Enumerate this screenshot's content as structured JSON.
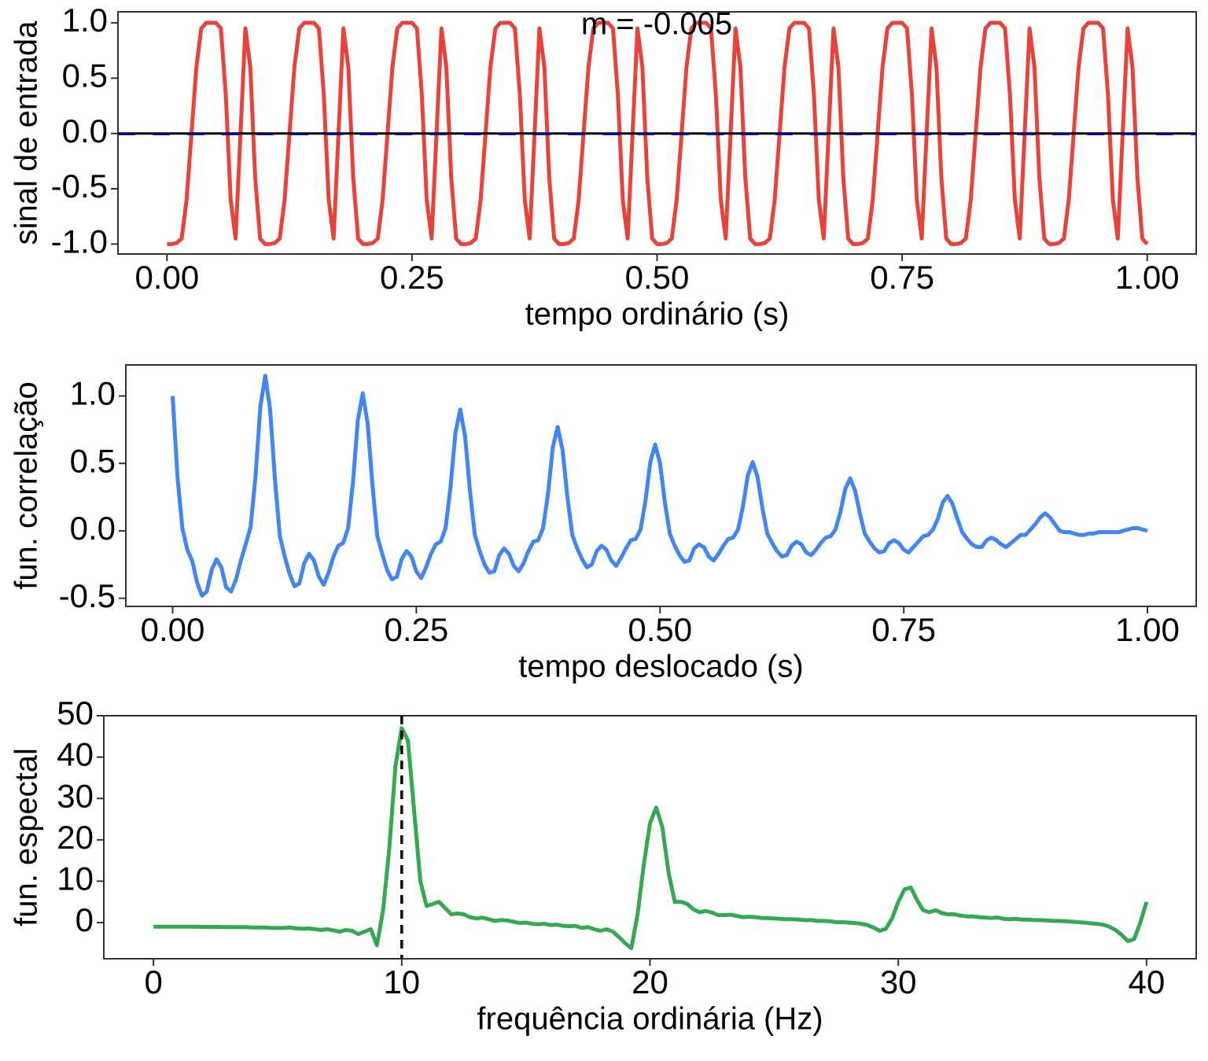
{
  "chart_data": [
    {
      "type": "line",
      "color": "#e8423a",
      "xlabel": "tempo ordinário (s)",
      "ylabel": "sinal de entrada",
      "annotation": "m = -0.005",
      "hline": 0,
      "mean": -0.005,
      "mean_color": "#00008b",
      "xlim": [
        -0.05,
        1.05
      ],
      "ylim": [
        -1.09,
        1.1
      ],
      "xticks": [
        {
          "value": 0,
          "label": "0.00"
        },
        {
          "value": 0.25,
          "label": "0.25"
        },
        {
          "value": 0.5,
          "label": "0.50"
        },
        {
          "value": 0.75,
          "label": "0.75"
        },
        {
          "value": 1,
          "label": "1.00"
        }
      ],
      "yticks": [
        {
          "value": -1,
          "label": "-1.0"
        },
        -0.5,
        {
          "value": 0,
          "label": "0.0"
        },
        0.5,
        {
          "value": 1,
          "label": "1.0"
        }
      ],
      "x": [
        0,
        0.005,
        0.01,
        0.015,
        0.02,
        0.025,
        0.03,
        0.035,
        0.04,
        0.045,
        0.05,
        0.055,
        0.06,
        0.065,
        0.07,
        0.075,
        0.08,
        0.085,
        0.09,
        0.095,
        0.1,
        0.105,
        0.11,
        0.115,
        0.12,
        0.125,
        0.13,
        0.135,
        0.14,
        0.145,
        0.15,
        0.155,
        0.16,
        0.165,
        0.17,
        0.175,
        0.18,
        0.185,
        0.19,
        0.195,
        0.2,
        0.205,
        0.21,
        0.215,
        0.22,
        0.225,
        0.23,
        0.235,
        0.24,
        0.245,
        0.25,
        0.255,
        0.26,
        0.265,
        0.27,
        0.275,
        0.28,
        0.285,
        0.29,
        0.295,
        0.3,
        0.305,
        0.31,
        0.315,
        0.32,
        0.325,
        0.33,
        0.335,
        0.34,
        0.345,
        0.35,
        0.355,
        0.36,
        0.365,
        0.37,
        0.375,
        0.38,
        0.385,
        0.39,
        0.395,
        0.4,
        0.405,
        0.41,
        0.415,
        0.42,
        0.425,
        0.43,
        0.435,
        0.44,
        0.445,
        0.45,
        0.455,
        0.46,
        0.465,
        0.47,
        0.475,
        0.48,
        0.485,
        0.49,
        0.495,
        0.5,
        0.505,
        0.51,
        0.515,
        0.52,
        0.525,
        0.53,
        0.535,
        0.54,
        0.545,
        0.55,
        0.555,
        0.56,
        0.565,
        0.57,
        0.575,
        0.58,
        0.585,
        0.59,
        0.595,
        0.6,
        0.605,
        0.61,
        0.615,
        0.62,
        0.625,
        0.63,
        0.635,
        0.64,
        0.645,
        0.65,
        0.655,
        0.66,
        0.665,
        0.67,
        0.675,
        0.68,
        0.685,
        0.69,
        0.695,
        0.7,
        0.705,
        0.71,
        0.715,
        0.72,
        0.725,
        0.73,
        0.735,
        0.74,
        0.745,
        0.75,
        0.755,
        0.76,
        0.765,
        0.77,
        0.775,
        0.78,
        0.785,
        0.79,
        0.795,
        0.8,
        0.805,
        0.81,
        0.815,
        0.82,
        0.825,
        0.83,
        0.835,
        0.84,
        0.845,
        0.85,
        0.855,
        0.86,
        0.865,
        0.87,
        0.875,
        0.88,
        0.885,
        0.89,
        0.895,
        0.9,
        0.905,
        0.91,
        0.915,
        0.92,
        0.925,
        0.93,
        0.935,
        0.94,
        0.945,
        0.95,
        0.955,
        0.96,
        0.965,
        0.97,
        0.975,
        0.98,
        0.985,
        0.99,
        0.995,
        1
      ],
      "values": [
        -1,
        -1,
        -0.99,
        -0.95,
        -0.6,
        0,
        0.6,
        0.95,
        1,
        1,
        1,
        0.95,
        0.35,
        -0.6,
        -0.95,
        0,
        0.95,
        0.6,
        -0.4,
        -0.95,
        -1,
        -1,
        -0.99,
        -0.95,
        -0.6,
        0,
        0.6,
        0.95,
        1,
        1,
        1,
        0.95,
        0.35,
        -0.6,
        -0.95,
        0,
        0.95,
        0.6,
        -0.4,
        -0.95,
        -1,
        -1,
        -0.99,
        -0.95,
        -0.6,
        0,
        0.6,
        0.95,
        1,
        1,
        1,
        0.95,
        0.35,
        -0.6,
        -0.95,
        0,
        0.95,
        0.6,
        -0.4,
        -0.95,
        -1,
        -1,
        -0.99,
        -0.95,
        -0.6,
        0,
        0.6,
        0.95,
        1,
        1,
        1,
        0.95,
        0.35,
        -0.6,
        -0.95,
        0,
        0.95,
        0.6,
        -0.4,
        -0.95,
        -1,
        -1,
        -0.99,
        -0.95,
        -0.6,
        0,
        0.6,
        0.95,
        1,
        1,
        1,
        0.95,
        0.35,
        -0.6,
        -0.95,
        0,
        0.95,
        0.6,
        -0.4,
        -0.95,
        -1,
        -1,
        -0.99,
        -0.95,
        -0.6,
        0,
        0.6,
        0.95,
        1,
        1,
        1,
        0.95,
        0.35,
        -0.6,
        -0.95,
        0,
        0.95,
        0.6,
        -0.4,
        -0.95,
        -1,
        -1,
        -0.99,
        -0.95,
        -0.6,
        0,
        0.6,
        0.95,
        1,
        1,
        1,
        0.95,
        0.35,
        -0.6,
        -0.95,
        0,
        0.95,
        0.6,
        -0.4,
        -0.95,
        -1,
        -1,
        -0.99,
        -0.95,
        -0.6,
        0,
        0.6,
        0.95,
        1,
        1,
        1,
        0.95,
        0.35,
        -0.6,
        -0.95,
        0,
        0.95,
        0.6,
        -0.4,
        -0.95,
        -1,
        -1,
        -0.99,
        -0.95,
        -0.6,
        0,
        0.6,
        0.95,
        1,
        1,
        1,
        0.95,
        0.35,
        -0.6,
        -0.95,
        0,
        0.95,
        0.6,
        -0.4,
        -0.95,
        -1,
        -1,
        -0.99,
        -0.95,
        -0.6,
        0,
        0.6,
        0.95,
        1,
        1,
        1,
        0.95,
        0.35,
        -0.6,
        -0.95,
        0,
        0.95,
        0.6,
        -0.4,
        -0.95,
        -1
      ]
    },
    {
      "type": "line",
      "color": "#4285f4",
      "xlabel": "tempo deslocado (s)",
      "ylabel": "fun. correlação",
      "xlim": [
        -0.048,
        1.05
      ],
      "ylim": [
        -0.56,
        1.23
      ],
      "xticks": [
        {
          "value": 0,
          "label": "0.00"
        },
        {
          "value": 0.25,
          "label": "0.25"
        },
        {
          "value": 0.5,
          "label": "0.50"
        },
        {
          "value": 0.75,
          "label": "0.75"
        },
        {
          "value": 1,
          "label": "1.00"
        }
      ],
      "yticks": [
        -0.5,
        {
          "value": 0,
          "label": "0.0"
        },
        0.5,
        {
          "value": 1,
          "label": "1.0"
        }
      ],
      "x": [
        0,
        0.005,
        0.01,
        0.015,
        0.02,
        0.025,
        0.03,
        0.035,
        0.04,
        0.045,
        0.05,
        0.055,
        0.06,
        0.065,
        0.07,
        0.075,
        0.08,
        0.085,
        0.09,
        0.095,
        0.1,
        0.105,
        0.11,
        0.115,
        0.12,
        0.125,
        0.13,
        0.135,
        0.14,
        0.145,
        0.15,
        0.155,
        0.16,
        0.165,
        0.17,
        0.175,
        0.18,
        0.185,
        0.19,
        0.195,
        0.2,
        0.205,
        0.21,
        0.215,
        0.22,
        0.225,
        0.23,
        0.235,
        0.24,
        0.245,
        0.25,
        0.255,
        0.26,
        0.265,
        0.27,
        0.275,
        0.28,
        0.285,
        0.29,
        0.295,
        0.3,
        0.305,
        0.31,
        0.315,
        0.32,
        0.325,
        0.33,
        0.335,
        0.34,
        0.345,
        0.35,
        0.355,
        0.36,
        0.365,
        0.37,
        0.375,
        0.38,
        0.385,
        0.39,
        0.395,
        0.4,
        0.405,
        0.41,
        0.415,
        0.42,
        0.425,
        0.43,
        0.435,
        0.44,
        0.445,
        0.45,
        0.455,
        0.46,
        0.465,
        0.47,
        0.475,
        0.48,
        0.485,
        0.49,
        0.495,
        0.5,
        0.505,
        0.51,
        0.515,
        0.52,
        0.525,
        0.53,
        0.535,
        0.54,
        0.545,
        0.55,
        0.555,
        0.56,
        0.565,
        0.57,
        0.575,
        0.58,
        0.585,
        0.59,
        0.595,
        0.6,
        0.605,
        0.61,
        0.615,
        0.62,
        0.625,
        0.63,
        0.635,
        0.64,
        0.645,
        0.65,
        0.655,
        0.66,
        0.665,
        0.67,
        0.675,
        0.68,
        0.685,
        0.69,
        0.695,
        0.7,
        0.705,
        0.71,
        0.715,
        0.72,
        0.725,
        0.73,
        0.735,
        0.74,
        0.745,
        0.75,
        0.755,
        0.76,
        0.765,
        0.77,
        0.775,
        0.78,
        0.785,
        0.79,
        0.795,
        0.8,
        0.805,
        0.81,
        0.815,
        0.82,
        0.825,
        0.83,
        0.835,
        0.84,
        0.845,
        0.85,
        0.855,
        0.86,
        0.865,
        0.87,
        0.875,
        0.88,
        0.885,
        0.89,
        0.895,
        0.9,
        0.905,
        0.91,
        0.915,
        0.92,
        0.925,
        0.93,
        0.935,
        0.94,
        0.945,
        0.95,
        0.955,
        0.96,
        0.965,
        0.97,
        0.975,
        0.98,
        0.985,
        0.99,
        0.995,
        1
      ],
      "values": [
        1.0,
        0.4,
        0.02,
        -0.14,
        -0.22,
        -0.38,
        -0.48,
        -0.45,
        -0.29,
        -0.21,
        -0.27,
        -0.42,
        -0.45,
        -0.36,
        -0.22,
        -0.1,
        0.03,
        0.4,
        0.92,
        1.15,
        0.9,
        0.38,
        -0.04,
        -0.19,
        -0.32,
        -0.41,
        -0.39,
        -0.24,
        -0.17,
        -0.22,
        -0.34,
        -0.4,
        -0.31,
        -0.19,
        -0.11,
        -0.09,
        0.02,
        0.36,
        0.82,
        1.02,
        0.8,
        0.34,
        -0.04,
        -0.17,
        -0.29,
        -0.36,
        -0.34,
        -0.21,
        -0.15,
        -0.19,
        -0.3,
        -0.35,
        -0.27,
        -0.17,
        -0.1,
        -0.08,
        0.02,
        0.32,
        0.72,
        0.9,
        0.7,
        0.3,
        -0.03,
        -0.15,
        -0.25,
        -0.31,
        -0.3,
        -0.18,
        -0.13,
        -0.17,
        -0.26,
        -0.3,
        -0.24,
        -0.15,
        -0.08,
        -0.07,
        0.02,
        0.27,
        0.62,
        0.77,
        0.6,
        0.25,
        -0.03,
        -0.13,
        -0.21,
        -0.27,
        -0.25,
        -0.15,
        -0.11,
        -0.14,
        -0.22,
        -0.26,
        -0.2,
        -0.13,
        -0.07,
        -0.06,
        0.01,
        0.22,
        0.51,
        0.64,
        0.5,
        0.21,
        -0.02,
        -0.11,
        -0.18,
        -0.23,
        -0.22,
        -0.13,
        -0.1,
        -0.12,
        -0.19,
        -0.22,
        -0.17,
        -0.11,
        -0.06,
        -0.05,
        0.01,
        0.18,
        0.41,
        0.51,
        0.4,
        0.17,
        -0.02,
        -0.09,
        -0.15,
        -0.19,
        -0.18,
        -0.11,
        -0.08,
        -0.1,
        -0.16,
        -0.18,
        -0.14,
        -0.09,
        -0.05,
        -0.04,
        0.01,
        0.14,
        0.31,
        0.39,
        0.3,
        0.13,
        -0.02,
        -0.08,
        -0.13,
        -0.16,
        -0.15,
        -0.09,
        -0.07,
        -0.09,
        -0.14,
        -0.16,
        -0.12,
        -0.08,
        -0.04,
        -0.03,
        0.01,
        0.09,
        0.21,
        0.26,
        0.2,
        0.09,
        -0.01,
        -0.06,
        -0.1,
        -0.12,
        -0.12,
        -0.07,
        -0.05,
        -0.07,
        -0.1,
        -0.12,
        -0.09,
        -0.06,
        -0.03,
        -0.03,
        0.01,
        0.05,
        0.1,
        0.13,
        0.1,
        0.05,
        0,
        -0.01,
        -0.01,
        -0.02,
        -0.03,
        -0.03,
        -0.02,
        -0.02,
        -0.01,
        -0.01,
        -0.01,
        -0.01,
        -0.01,
        0,
        0.01,
        0.02,
        0.02,
        0.01,
        0
      ]
    },
    {
      "type": "line",
      "color": "#34a853",
      "xlabel": "frequência ordinária (Hz)",
      "ylabel": "fun. espectal",
      "vline": 10,
      "xlim": [
        -2,
        42
      ],
      "ylim": [
        -8.75,
        50
      ],
      "xticks": [
        0,
        10,
        20,
        30,
        40
      ],
      "yticks": [
        0,
        10,
        20,
        30,
        40,
        50
      ],
      "x": [
        0,
        0.25,
        0.5,
        0.75,
        1,
        1.25,
        1.5,
        1.75,
        2,
        2.25,
        2.5,
        2.75,
        3,
        3.25,
        3.5,
        3.75,
        4,
        4.25,
        4.5,
        4.75,
        5,
        5.25,
        5.5,
        5.75,
        6,
        6.25,
        6.5,
        6.75,
        7,
        7.25,
        7.5,
        7.75,
        8,
        8.25,
        8.5,
        8.75,
        9,
        9.25,
        9.5,
        9.75,
        10,
        10.25,
        10.5,
        10.75,
        11,
        11.25,
        11.5,
        11.75,
        12,
        12.25,
        12.5,
        12.75,
        13,
        13.25,
        13.5,
        13.75,
        14,
        14.25,
        14.5,
        14.75,
        15,
        15.25,
        15.5,
        15.75,
        16,
        16.25,
        16.5,
        16.75,
        17,
        17.25,
        17.5,
        17.75,
        18,
        18.25,
        18.5,
        18.75,
        19,
        19.25,
        19.5,
        19.75,
        20,
        20.25,
        20.5,
        20.75,
        21,
        21.25,
        21.5,
        21.75,
        22,
        22.25,
        22.5,
        22.75,
        23,
        23.25,
        23.5,
        23.75,
        24,
        24.25,
        24.5,
        24.75,
        25,
        25.25,
        25.5,
        25.75,
        26,
        26.25,
        26.5,
        26.75,
        27,
        27.25,
        27.5,
        27.75,
        28,
        28.25,
        28.5,
        28.75,
        29,
        29.25,
        29.5,
        29.75,
        30,
        30.25,
        30.5,
        30.75,
        31,
        31.25,
        31.5,
        31.75,
        32,
        32.25,
        32.5,
        32.75,
        33,
        33.25,
        33.5,
        33.75,
        34,
        34.25,
        34.5,
        34.75,
        35,
        35.25,
        35.5,
        35.75,
        36,
        36.25,
        36.5,
        36.75,
        37,
        37.25,
        37.5,
        37.75,
        38,
        38.25,
        38.5,
        38.75,
        39,
        39.25,
        39.5,
        39.75,
        40
      ],
      "values": [
        -1,
        -1,
        -1,
        -1,
        -1,
        -1,
        -1,
        -1,
        -1.05,
        -1.05,
        -1.05,
        -1.1,
        -1.1,
        -1.1,
        -1.1,
        -1.1,
        -1.2,
        -1.2,
        -1.2,
        -1.3,
        -1.3,
        -1.3,
        -1.2,
        -1.4,
        -1.5,
        -1.4,
        -1.6,
        -1.8,
        -1.6,
        -1.9,
        -2.2,
        -1.8,
        -2,
        -2.8,
        -2.2,
        -1.6,
        -5.5,
        3,
        18,
        38,
        47,
        44,
        27,
        10,
        4,
        4.5,
        5,
        3.5,
        2,
        2.2,
        2,
        1.3,
        1,
        1.2,
        0.8,
        0.4,
        0.6,
        0.5,
        0.2,
        -0.1,
        0,
        -0.3,
        -0.4,
        -0.3,
        -0.6,
        -0.5,
        -0.8,
        -0.9,
        -0.8,
        -1.3,
        -1.1,
        -1.6,
        -2,
        -1.6,
        -2.2,
        -3.5,
        -5,
        -6.2,
        2,
        14,
        24,
        27.8,
        23,
        12,
        5,
        5,
        4.5,
        3.2,
        2.5,
        2.8,
        2.4,
        1.8,
        1.8,
        1.9,
        1.6,
        1.3,
        1.4,
        1.3,
        1.1,
        1.1,
        1,
        0.9,
        0.8,
        0.8,
        0.7,
        0.6,
        0.6,
        0.4,
        0.4,
        0.3,
        0.1,
        0.1,
        0,
        -0.1,
        -0.3,
        -0.6,
        -1.2,
        -2,
        -1.5,
        1,
        5,
        8,
        8.5,
        5.5,
        3,
        2.5,
        3,
        2.3,
        2,
        2,
        1.7,
        1.5,
        1.5,
        1.3,
        1.2,
        1.1,
        1.2,
        0.9,
        0.8,
        0.9,
        0.7,
        0.7,
        0.6,
        0.6,
        0.5,
        0.4,
        0.4,
        0.3,
        0.2,
        0.1,
        0,
        -0.2,
        -0.3,
        -0.5,
        -1,
        -1.8,
        -3,
        -4.5,
        -4,
        0,
        5
      ]
    }
  ]
}
